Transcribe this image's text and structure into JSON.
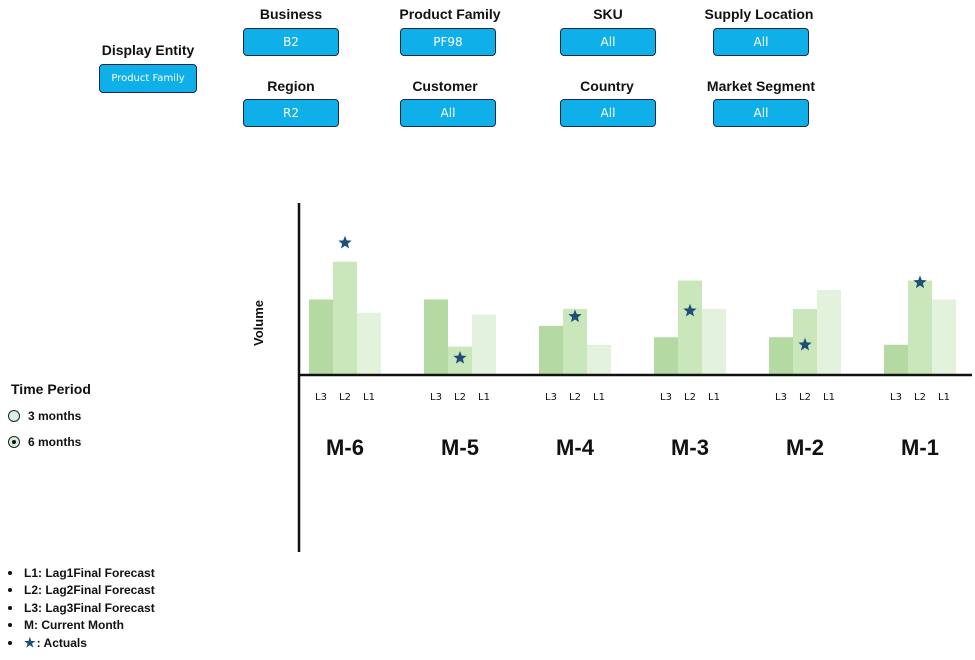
{
  "display_entity": {
    "label": "Display Entity",
    "value": "Product Family"
  },
  "filters": {
    "business": {
      "label": "Business",
      "value": "B2"
    },
    "product_family": {
      "label": "Product Family",
      "value": "PF98"
    },
    "sku": {
      "label": "SKU",
      "value": "All"
    },
    "supply_location": {
      "label": "Supply Location",
      "value": "All"
    },
    "region": {
      "label": "Region",
      "value": "R2"
    },
    "customer": {
      "label": "Customer",
      "value": "All"
    },
    "country": {
      "label": "Country",
      "value": "All"
    },
    "market_segment": {
      "label": "Market Segment",
      "value": "All"
    }
  },
  "time_period": {
    "title": "Time Period",
    "options": [
      {
        "label": "3 months",
        "selected": false
      },
      {
        "label": "6 months",
        "selected": true
      }
    ]
  },
  "legend": {
    "items": [
      "L1: Lag1Final Forecast",
      "L2: Lag2Final Forecast",
      "L3: Lag3Final Forecast",
      "M: Current Month"
    ],
    "actuals_label": ": Actuals"
  },
  "colors": {
    "l3": "#b5d9a3",
    "l2": "#c9e7bb",
    "l1": "#e2f2dc",
    "star": "#1f4e79",
    "button": "#0fb0ea"
  },
  "chart_data": {
    "type": "bar",
    "ylabel": "Volume",
    "group_labels": [
      "M-6",
      "M-5",
      "M-4",
      "M-3",
      "M-2",
      "M-1"
    ],
    "bar_labels": [
      "L3",
      "L2",
      "L1"
    ],
    "series": [
      {
        "name": "L3",
        "values": [
          40,
          40,
          26,
          20,
          20,
          16
        ]
      },
      {
        "name": "L2",
        "values": [
          60,
          15,
          35,
          50,
          35,
          50
        ]
      },
      {
        "name": "L1",
        "values": [
          33,
          32,
          16,
          35,
          45,
          40
        ]
      }
    ],
    "actuals": [
      70,
      9,
      31,
      34,
      16,
      49
    ],
    "ylim": [
      0,
      90
    ],
    "grid": false
  }
}
